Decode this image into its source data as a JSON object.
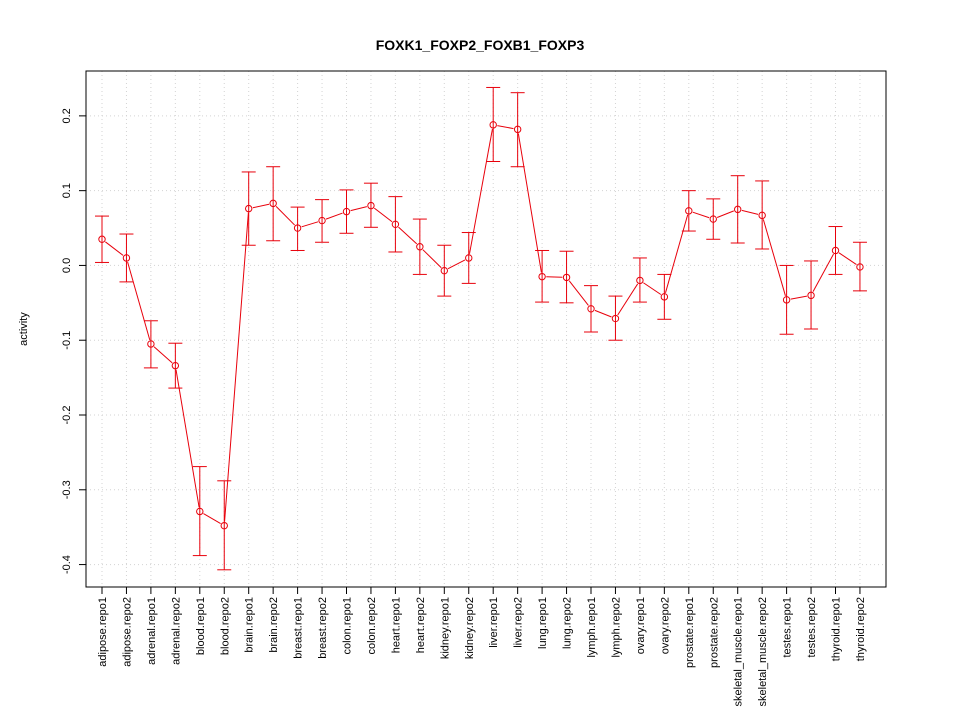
{
  "chart_data": {
    "type": "line",
    "title": "FOXK1_FOXP2_FOXB1_FOXP3",
    "xlabel": "",
    "ylabel": "activity",
    "ylim": [
      -0.43,
      0.26
    ],
    "yticks": [
      -0.4,
      -0.3,
      -0.2,
      -0.1,
      0.0,
      0.1,
      0.2
    ],
    "ytick_labels": [
      "-0.4",
      "-0.3",
      "-0.2",
      "-0.1",
      "0.0",
      "0.1",
      "0.2"
    ],
    "grid": true,
    "series_color": "#e8000b",
    "categories": [
      "adipose.repo1",
      "adipose.repo2",
      "adrenal.repo1",
      "adrenal.repo2",
      "blood.repo1",
      "blood.repo2",
      "brain.repo1",
      "brain.repo2",
      "breast.repo1",
      "breast.repo2",
      "colon.repo1",
      "colon.repo2",
      "heart.repo1",
      "heart.repo2",
      "kidney.repo1",
      "kidney.repo2",
      "liver.repo1",
      "liver.repo2",
      "lung.repo1",
      "lung.repo2",
      "lymph.repo1",
      "lymph.repo2",
      "ovary.repo1",
      "ovary.repo2",
      "prostate.repo1",
      "prostate.repo2",
      "skeletal_muscle.repo1",
      "skeletal_muscle.repo2",
      "testes.repo1",
      "testes.repo2",
      "thyroid.repo1",
      "thyroid.repo2"
    ],
    "values": [
      0.035,
      0.01,
      -0.105,
      -0.134,
      -0.329,
      -0.348,
      0.076,
      0.083,
      0.05,
      0.06,
      0.072,
      0.08,
      0.055,
      0.025,
      -0.007,
      0.01,
      0.188,
      0.182,
      -0.015,
      -0.016,
      -0.058,
      -0.071,
      -0.02,
      -0.042,
      0.073,
      0.062,
      0.075,
      0.067,
      -0.046,
      -0.04,
      0.02,
      -0.002
    ],
    "upper": [
      0.066,
      0.042,
      -0.074,
      -0.104,
      -0.269,
      -0.288,
      0.125,
      0.132,
      0.078,
      0.088,
      0.101,
      0.11,
      0.092,
      0.062,
      0.027,
      0.044,
      0.238,
      0.231,
      0.02,
      0.019,
      -0.027,
      -0.041,
      0.01,
      -0.012,
      0.1,
      0.089,
      0.12,
      0.113,
      0.0,
      0.006,
      0.052,
      0.031
    ],
    "lower": [
      0.004,
      -0.022,
      -0.137,
      -0.164,
      -0.388,
      -0.407,
      0.027,
      0.033,
      0.02,
      0.031,
      0.043,
      0.051,
      0.018,
      -0.012,
      -0.041,
      -0.024,
      0.139,
      0.132,
      -0.049,
      -0.05,
      -0.089,
      -0.1,
      -0.049,
      -0.072,
      0.046,
      0.035,
      0.03,
      0.022,
      -0.092,
      -0.085,
      -0.012,
      -0.034
    ]
  }
}
